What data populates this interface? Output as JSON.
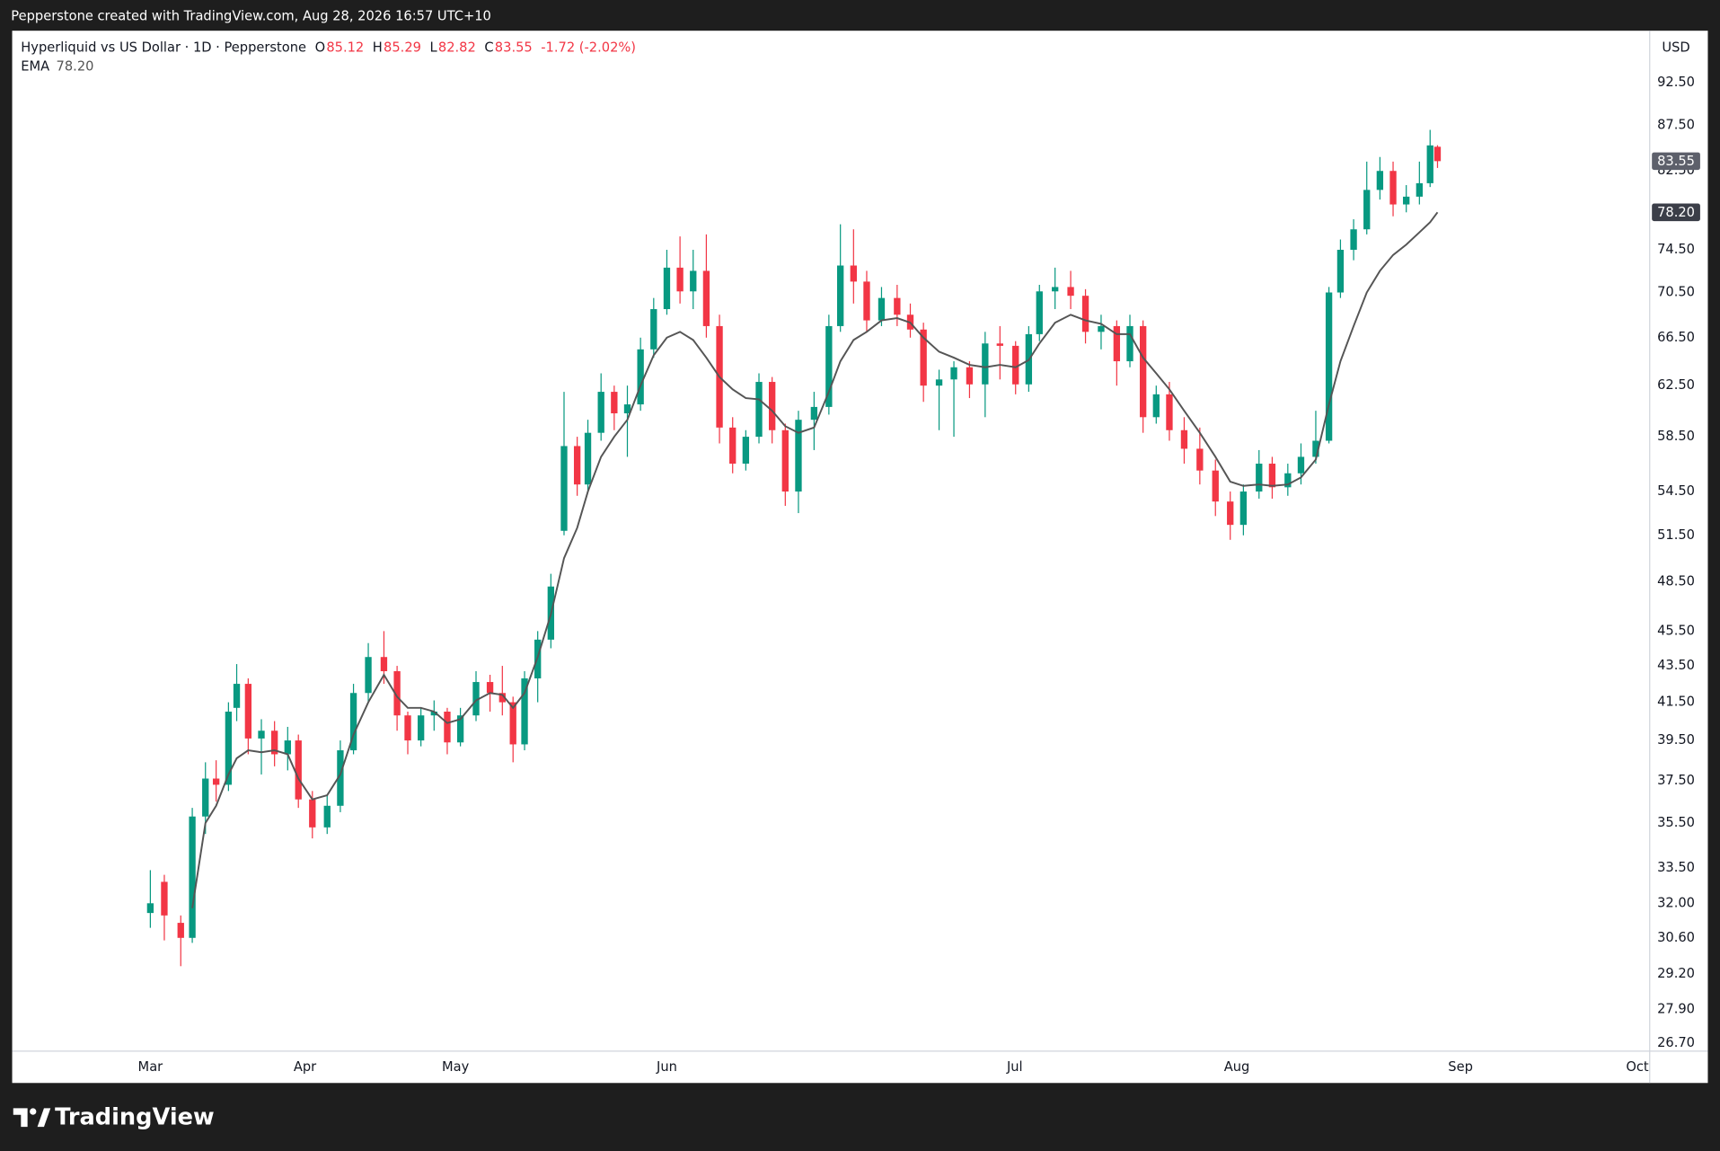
{
  "chart_data": {
    "type": "candlestick",
    "attribution": "Pepperstone created with TradingView.com, Aug 28, 2026 16:57 UTC+10",
    "title": "Hyperliquid vs US Dollar · 1D · Pepperstone",
    "ohlc_letters": {
      "open": "O",
      "high": "H",
      "low": "L",
      "close": "C"
    },
    "change": "-1.72 (-2.02%)",
    "currency": "USD",
    "brand": "TradingView",
    "up_color": "#089981",
    "down_color": "#f23645",
    "log_scale": true,
    "grid": false,
    "x": [
      0,
      1.7,
      3.7,
      5.1,
      6.7,
      8,
      9.5,
      10.5,
      11.9,
      13.5,
      15.1,
      16.7,
      18,
      19.7,
      21.5,
      23.1,
      24.7,
      26.5,
      28.4,
      30,
      31.3,
      32.9,
      34.5,
      36.1,
      37.7,
      39.6,
      41.3,
      42.8,
      44.1,
      45.5,
      47.1,
      48.7,
      50.3,
      51.9,
      53.2,
      54.8,
      56.4,
      58,
      59.6,
      61.2,
      62.8,
      64.4,
      66,
      67.6,
      69.2,
      70.8,
      72.4,
      74,
      75.6,
      77.2,
      78.8,
      80.7,
      82.5,
      83.9,
      85.5,
      87.1,
      88.9,
      90.8,
      92.4,
      94,
      95.9,
      97.7,
      99.6,
      101.5,
      103.3,
      105.2,
      106.8,
      108.1,
      110,
      111.9,
      113.7,
      115.6,
      117.5,
      119.1,
      120.7,
      122.3,
      123.9,
      125.7,
      127.6,
      129.5,
      131.3,
      132.9,
      134.8,
      136.4,
      138.3,
      139.9,
      141.7,
      143.3,
      144.7,
      146.3,
      147.9,
      149.5,
      151.1,
      152.7,
      154.3,
      155.6,
      156.5
    ],
    "open": [
      31.6,
      32.9,
      31.2,
      30.6,
      35.8,
      37.6,
      37.3,
      41.2,
      42.5,
      39.6,
      40.0,
      38.8,
      39.5,
      36.6,
      35.3,
      36.3,
      39.0,
      42.0,
      44.0,
      43.2,
      40.8,
      39.5,
      40.8,
      41.0,
      39.4,
      40.8,
      42.6,
      42.0,
      41.5,
      39.3,
      42.8,
      45.0,
      51.8,
      57.8,
      55.0,
      58.8,
      62.0,
      60.3,
      61.0,
      65.5,
      69.0,
      72.8,
      70.6,
      72.5,
      67.5,
      59.2,
      56.5,
      58.5,
      62.8,
      59.0,
      54.5,
      59.8,
      60.8,
      67.5,
      73.0,
      71.5,
      68.0,
      70.0,
      68.5,
      67.2,
      62.5,
      63.0,
      64.0,
      62.6,
      66.0,
      65.8,
      62.6,
      66.8,
      70.6,
      71.0,
      70.2,
      67.0,
      67.5,
      64.5,
      67.5,
      60.0,
      61.8,
      59.0,
      57.6,
      56.0,
      53.8,
      52.2,
      54.5,
      56.5,
      54.8,
      55.8,
      57.0,
      58.2,
      70.5,
      74.5,
      76.5,
      80.5,
      82.5,
      79.0,
      79.8,
      81.2,
      85.12
    ],
    "high": [
      33.4,
      33.2,
      31.5,
      36.2,
      38.4,
      38.5,
      41.5,
      43.6,
      42.8,
      40.6,
      40.5,
      40.2,
      39.8,
      37.0,
      36.8,
      39.5,
      42.5,
      44.8,
      45.5,
      43.5,
      41.0,
      41.2,
      41.6,
      41.2,
      41.2,
      43.2,
      43.0,
      43.5,
      41.8,
      43.2,
      45.5,
      49.0,
      62.0,
      58.5,
      59.8,
      63.5,
      62.5,
      62.5,
      66.5,
      70.0,
      74.5,
      75.8,
      74.5,
      76.0,
      68.5,
      60.0,
      59.0,
      63.5,
      63.2,
      59.5,
      60.5,
      62.0,
      68.5,
      77.0,
      76.5,
      72.5,
      71.0,
      71.2,
      69.5,
      67.8,
      63.8,
      64.5,
      64.5,
      67.0,
      67.5,
      66.2,
      67.5,
      71.2,
      72.8,
      72.5,
      70.8,
      68.5,
      68.0,
      68.5,
      68.0,
      62.5,
      62.8,
      60.0,
      59.2,
      56.8,
      54.5,
      55.0,
      57.5,
      57.0,
      56.5,
      58.0,
      60.5,
      71.0,
      75.5,
      77.5,
      83.5,
      84.0,
      83.5,
      81.0,
      83.5,
      87.0,
      85.29
    ],
    "low": [
      31.0,
      30.5,
      29.5,
      30.4,
      35.0,
      36.5,
      37.0,
      40.5,
      38.8,
      37.8,
      38.2,
      38.0,
      36.2,
      34.8,
      35.0,
      36.0,
      38.8,
      41.5,
      42.5,
      40.0,
      38.8,
      39.2,
      40.0,
      38.8,
      39.2,
      40.5,
      41.0,
      40.8,
      38.4,
      39.0,
      41.5,
      44.5,
      51.5,
      54.2,
      54.5,
      58.2,
      59.0,
      57.0,
      60.5,
      64.8,
      68.5,
      69.5,
      69.0,
      66.5,
      58.0,
      55.8,
      56.0,
      58.0,
      58.0,
      53.5,
      53.0,
      57.5,
      60.2,
      67.0,
      69.5,
      67.0,
      67.5,
      67.5,
      66.5,
      61.2,
      59.0,
      58.5,
      61.5,
      60.0,
      63.0,
      61.8,
      62.0,
      66.2,
      69.0,
      69.0,
      66.0,
      65.5,
      62.5,
      64.0,
      58.8,
      59.5,
      58.2,
      56.5,
      55.0,
      52.8,
      51.2,
      51.5,
      54.0,
      54.0,
      54.2,
      55.0,
      56.5,
      58.0,
      70.0,
      73.5,
      76.0,
      79.5,
      77.8,
      78.2,
      79.0,
      80.8,
      82.82
    ],
    "close": [
      32.0,
      31.5,
      30.6,
      35.8,
      37.6,
      37.3,
      41.0,
      42.5,
      39.6,
      40.0,
      38.8,
      39.5,
      36.6,
      35.3,
      36.3,
      39.0,
      42.0,
      44.0,
      43.2,
      40.8,
      39.5,
      40.8,
      41.0,
      39.4,
      40.8,
      42.6,
      42.0,
      41.5,
      39.3,
      42.8,
      45.0,
      48.2,
      57.8,
      55.0,
      58.8,
      62.0,
      60.3,
      61.0,
      65.5,
      69.0,
      72.8,
      70.6,
      72.5,
      67.5,
      59.2,
      56.5,
      58.5,
      62.8,
      59.0,
      54.5,
      59.8,
      60.8,
      67.5,
      73.0,
      71.5,
      68.0,
      70.0,
      68.5,
      67.2,
      62.5,
      63.0,
      64.0,
      62.6,
      66.0,
      65.8,
      62.6,
      66.8,
      70.6,
      71.0,
      70.2,
      67.0,
      67.5,
      64.5,
      67.5,
      60.0,
      61.8,
      59.0,
      57.6,
      56.0,
      53.8,
      52.2,
      54.5,
      56.5,
      54.8,
      55.8,
      57.0,
      58.2,
      70.5,
      74.5,
      76.5,
      80.5,
      82.5,
      79.0,
      79.8,
      81.2,
      85.27,
      83.55
    ],
    "ema": {
      "name": "EMA",
      "color": "#555555",
      "values": [
        null,
        null,
        null,
        31.8,
        35.5,
        36.3,
        37.8,
        38.6,
        39.0,
        38.9,
        39.0,
        38.8,
        37.6,
        36.6,
        36.8,
        37.8,
        39.8,
        41.5,
        43.0,
        41.8,
        41.2,
        41.2,
        41.0,
        40.4,
        40.6,
        41.6,
        42.0,
        41.9,
        41.2,
        42.0,
        44.0,
        46.5,
        50.0,
        52.0,
        54.5,
        57.0,
        58.5,
        59.8,
        62.5,
        65.0,
        66.5,
        67.0,
        66.3,
        64.8,
        63.2,
        62.2,
        61.5,
        61.4,
        60.5,
        59.3,
        58.8,
        59.2,
        62.0,
        64.5,
        66.3,
        67.0,
        68.0,
        68.2,
        67.8,
        66.5,
        65.3,
        64.8,
        64.2,
        64.0,
        64.2,
        64.0,
        64.6,
        66.0,
        67.8,
        68.5,
        68.0,
        67.7,
        66.8,
        66.8,
        64.8,
        63.5,
        62.2,
        60.5,
        58.8,
        57.0,
        55.2,
        54.9,
        55.0,
        54.9,
        55.0,
        55.5,
        56.8,
        61.0,
        64.5,
        67.5,
        70.5,
        72.5,
        74.0,
        75.0,
        76.2,
        77.2,
        78.2
      ],
      "value_labels": [
        null,
        null,
        null,
        null,
        null,
        null,
        null,
        null,
        null,
        null,
        null,
        null,
        null,
        null,
        null,
        null,
        null,
        null,
        null,
        null,
        null,
        null,
        null,
        null,
        null,
        null,
        null,
        null,
        null,
        null,
        null,
        null,
        null,
        null,
        null,
        null,
        null,
        null,
        null,
        null,
        null,
        null,
        null,
        null,
        null,
        null,
        null,
        null,
        null,
        null,
        null,
        null,
        null,
        null,
        null,
        null,
        null,
        null,
        null,
        null,
        null,
        null,
        null,
        null,
        null,
        null,
        null,
        null,
        null,
        null,
        null,
        null,
        null,
        null,
        null,
        null,
        null,
        null,
        null,
        null,
        null,
        null,
        null,
        null,
        null,
        null,
        null,
        null,
        null,
        null,
        null,
        null,
        null,
        null,
        null,
        null,
        "78.20"
      ]
    },
    "xlim": [
      -16.8,
      182.3
    ],
    "xticks": [
      {
        "value": 0,
        "label": "Mar"
      },
      {
        "value": 18.8,
        "label": "Apr"
      },
      {
        "value": 37.1,
        "label": "May"
      },
      {
        "value": 62.8,
        "label": "Jun"
      },
      {
        "value": 105.1,
        "label": "Jul"
      },
      {
        "value": 132.1,
        "label": "Aug"
      },
      {
        "value": 159.3,
        "label": "Sep"
      },
      {
        "value": 180.8,
        "label": "Oct"
      }
    ],
    "ylim": [
      26.43,
      98.9
    ],
    "yticks": [
      {
        "value": 26.7,
        "label": "26.70"
      },
      {
        "value": 27.9,
        "label": "27.90"
      },
      {
        "value": 29.2,
        "label": "29.20"
      },
      {
        "value": 30.6,
        "label": "30.60"
      },
      {
        "value": 32,
        "label": "32.00"
      },
      {
        "value": 33.5,
        "label": "33.50"
      },
      {
        "value": 35.5,
        "label": "35.50"
      },
      {
        "value": 37.5,
        "label": "37.50"
      },
      {
        "value": 39.5,
        "label": "39.50"
      },
      {
        "value": 41.5,
        "label": "41.50"
      },
      {
        "value": 43.5,
        "label": "43.50"
      },
      {
        "value": 45.5,
        "label": "45.50"
      },
      {
        "value": 48.5,
        "label": "48.50"
      },
      {
        "value": 51.5,
        "label": "51.50"
      },
      {
        "value": 54.5,
        "label": "54.50"
      },
      {
        "value": 58.5,
        "label": "58.50"
      },
      {
        "value": 62.5,
        "label": "62.50"
      },
      {
        "value": 66.5,
        "label": "66.50"
      },
      {
        "value": 70.5,
        "label": "70.50"
      },
      {
        "value": 74.5,
        "label": "74.50"
      },
      {
        "value": 82.5,
        "label": "82.50"
      },
      {
        "value": 87.5,
        "label": "87.50"
      },
      {
        "value": 92.5,
        "label": "92.50"
      }
    ]
  }
}
